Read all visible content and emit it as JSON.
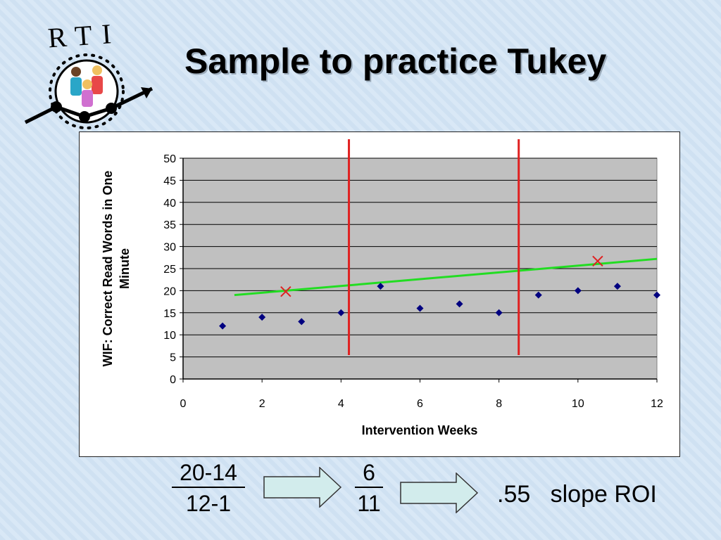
{
  "slide": {
    "title": "Sample to practice Tukey",
    "logo_text": "RTI"
  },
  "chart_data": {
    "type": "scatter",
    "title": "",
    "xlabel": "Intervention Weeks",
    "ylabel_line1": "WIF: Correct Read Words in One",
    "ylabel_line2": "Minute",
    "xlim": [
      0,
      12
    ],
    "ylim": [
      0,
      50
    ],
    "xticks": [
      0,
      2,
      4,
      6,
      8,
      10,
      12
    ],
    "yticks": [
      0,
      5,
      10,
      15,
      20,
      25,
      30,
      35,
      40,
      45,
      50
    ],
    "points": [
      {
        "x": 1,
        "y": 12
      },
      {
        "x": 2,
        "y": 14
      },
      {
        "x": 3,
        "y": 13
      },
      {
        "x": 4,
        "y": 15
      },
      {
        "x": 5,
        "y": 21
      },
      {
        "x": 6,
        "y": 16
      },
      {
        "x": 7,
        "y": 17
      },
      {
        "x": 8,
        "y": 15
      },
      {
        "x": 9,
        "y": 19
      },
      {
        "x": 10,
        "y": 20
      },
      {
        "x": 11,
        "y": 21
      },
      {
        "x": 12,
        "y": 19
      }
    ],
    "section_dividers_x": [
      4.2,
      8.5
    ],
    "median_marks": [
      {
        "x": 2.6,
        "y": 19.8,
        "symbol": "x"
      },
      {
        "x": 10.5,
        "y": 26.7,
        "symbol": "x"
      }
    ],
    "trend_line": {
      "x1": 1.3,
      "y1": 19.0,
      "x2": 12,
      "y2": 27.2
    },
    "grid": true,
    "plot_background": "#c0c0c0",
    "marker_color": "#000080",
    "divider_color": "#e02020",
    "mark_color": "#e02020",
    "trend_color": "#22dd22"
  },
  "calculation": {
    "fraction1_top": "20-14",
    "fraction1_bottom": "12-1",
    "fraction2_top": "6",
    "fraction2_bottom": "11",
    "result": ".55   slope ROI"
  },
  "colors": {
    "arrow_fill": "#d2ecec",
    "arrow_stroke": "#333333"
  }
}
